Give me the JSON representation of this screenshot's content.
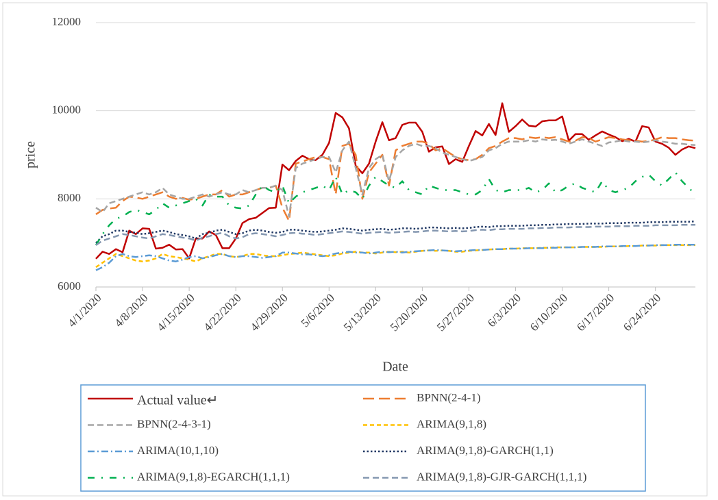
{
  "chart_data": {
    "type": "line",
    "x_label": "Date",
    "y_label": "price",
    "categories": [
      "4/1/2020",
      null,
      null,
      null,
      null,
      null,
      null,
      "4/8/2020",
      null,
      null,
      null,
      null,
      null,
      null,
      "4/15/2020",
      null,
      null,
      null,
      null,
      null,
      null,
      "4/22/2020",
      null,
      null,
      null,
      null,
      null,
      null,
      "4/29/2020",
      null,
      null,
      null,
      null,
      null,
      null,
      "5/6/2020",
      null,
      null,
      null,
      null,
      null,
      null,
      "5/13/2020",
      null,
      null,
      null,
      null,
      null,
      null,
      "5/20/2020",
      null,
      null,
      null,
      null,
      null,
      null,
      "5/27/2020",
      null,
      null,
      null,
      null,
      null,
      null,
      "6/3/2020",
      null,
      null,
      null,
      null,
      null,
      null,
      "6/10/2020",
      null,
      null,
      null,
      null,
      null,
      null,
      "6/17/2020",
      null,
      null,
      null,
      null,
      null,
      null,
      "6/24/2020",
      null,
      null,
      null,
      null,
      null,
      null
    ],
    "ylim": [
      6000,
      12000
    ],
    "yticks": [
      6000,
      8000,
      10000,
      12000
    ],
    "grid": true,
    "series": [
      {
        "name": "Actual value↵",
        "color": "#c00000",
        "line_style": "solid",
        "values": [
          6640,
          6800,
          6750,
          6860,
          6790,
          7280,
          7200,
          7330,
          7320,
          6870,
          6890,
          6960,
          6850,
          6860,
          6650,
          7100,
          7100,
          7260,
          7180,
          6880,
          6880,
          7100,
          7450,
          7540,
          7570,
          7680,
          7790,
          7800,
          8780,
          8650,
          8860,
          8980,
          8900,
          8880,
          9000,
          9270,
          9950,
          9850,
          9600,
          8750,
          8580,
          8800,
          9300,
          9740,
          9330,
          9380,
          9680,
          9730,
          9730,
          9520,
          9070,
          9170,
          9190,
          8790,
          8900,
          8840,
          9200,
          9540,
          9440,
          9700,
          9450,
          10170,
          9520,
          9650,
          9800,
          9660,
          9640,
          9760,
          9780,
          9780,
          9870,
          9320,
          9470,
          9470,
          9340,
          9440,
          9530,
          9460,
          9400,
          9310,
          9360,
          9300,
          9650,
          9620,
          9300,
          9250,
          9160,
          9000,
          9120,
          9190,
          9150
        ]
      },
      {
        "name": "BPNN(2-4-1)",
        "color": "#ed7d31",
        "line_style": "long-dash",
        "values": [
          7650,
          7750,
          7780,
          7800,
          7950,
          8050,
          8030,
          8000,
          8050,
          8100,
          8150,
          8050,
          8000,
          8020,
          7980,
          8000,
          8050,
          8100,
          8100,
          8200,
          8050,
          8100,
          8100,
          8150,
          8200,
          8250,
          8250,
          8300,
          7800,
          7500,
          8800,
          8850,
          8900,
          8950,
          8950,
          8900,
          8100,
          9200,
          9250,
          9000,
          8000,
          8600,
          8800,
          9000,
          8300,
          9100,
          9200,
          9250,
          9300,
          9300,
          9250,
          9100,
          9150,
          9050,
          8950,
          8900,
          8880,
          8900,
          9000,
          9150,
          9200,
          9300,
          9380,
          9380,
          9350,
          9400,
          9380,
          9400,
          9380,
          9400,
          9350,
          9300,
          9320,
          9400,
          9380,
          9300,
          9350,
          9400,
          9380,
          9350,
          9330,
          9320,
          9300,
          9310,
          9350,
          9400,
          9380,
          9380,
          9350,
          9330,
          9320
        ]
      },
      {
        "name": "BPNN(2-4-3-1)",
        "color": "#a5a5a5",
        "line_style": "dash",
        "values": [
          7800,
          7700,
          7900,
          7950,
          8000,
          8050,
          8100,
          8150,
          8100,
          8150,
          8250,
          8100,
          8050,
          8000,
          8000,
          8050,
          8100,
          8050,
          8100,
          8150,
          8100,
          8100,
          8200,
          8150,
          8200,
          8250,
          8250,
          8300,
          8200,
          7600,
          8700,
          8800,
          8850,
          8900,
          8950,
          8950,
          8600,
          9100,
          9300,
          8700,
          8100,
          8700,
          8900,
          9000,
          8400,
          8950,
          9100,
          9200,
          9250,
          9200,
          9200,
          9150,
          9050,
          9000,
          8950,
          8900,
          8860,
          8900,
          8950,
          9100,
          9150,
          9250,
          9300,
          9300,
          9300,
          9330,
          9300,
          9350,
          9330,
          9340,
          9300,
          9250,
          9300,
          9350,
          9300,
          9250,
          9200,
          9280,
          9300,
          9330,
          9300,
          9300,
          9280,
          9300,
          9330,
          9300,
          9280,
          9250,
          9250,
          9230,
          9220
        ]
      },
      {
        "name": "ARIMA(9,1,8)",
        "color": "#ffc000",
        "line_style": "short-dash",
        "values": [
          6450,
          6550,
          6650,
          6750,
          6700,
          6650,
          6600,
          6580,
          6600,
          6650,
          6750,
          6700,
          6680,
          6650,
          6620,
          6580,
          6650,
          6700,
          6750,
          6750,
          6700,
          6680,
          6700,
          6750,
          6750,
          6720,
          6700,
          6700,
          6720,
          6750,
          6760,
          6780,
          6760,
          6740,
          6720,
          6700,
          6720,
          6760,
          6780,
          6800,
          6780,
          6780,
          6760,
          6780,
          6800,
          6790,
          6800,
          6780,
          6800,
          6820,
          6830,
          6820,
          6830,
          6820,
          6800,
          6800,
          6820,
          6830,
          6840,
          6850,
          6860,
          6860,
          6870,
          6870,
          6880,
          6880,
          6880,
          6890,
          6890,
          6900,
          6900,
          6900,
          6900,
          6910,
          6910,
          6910,
          6910,
          6920,
          6920,
          6920,
          6930,
          6930,
          6940,
          6940,
          6940,
          6950,
          6950,
          6950,
          6950,
          6950,
          6950
        ]
      },
      {
        "name": "ARIMA(10,1,10)",
        "color": "#5b9bd5",
        "line_style": "dash-dot",
        "values": [
          6380,
          6450,
          6550,
          6700,
          6750,
          6700,
          6680,
          6700,
          6720,
          6700,
          6650,
          6600,
          6580,
          6620,
          6680,
          6700,
          6650,
          6680,
          6720,
          6750,
          6700,
          6680,
          6700,
          6700,
          6680,
          6660,
          6680,
          6700,
          6780,
          6780,
          6760,
          6740,
          6740,
          6720,
          6700,
          6720,
          6760,
          6780,
          6800,
          6780,
          6780,
          6760,
          6780,
          6800,
          6790,
          6800,
          6780,
          6800,
          6810,
          6820,
          6830,
          6840,
          6830,
          6820,
          6810,
          6820,
          6830,
          6840,
          6840,
          6850,
          6860,
          6860,
          6870,
          6870,
          6870,
          6880,
          6880,
          6880,
          6890,
          6890,
          6900,
          6900,
          6900,
          6910,
          6910,
          6910,
          6920,
          6920,
          6920,
          6930,
          6930,
          6930,
          6940,
          6940,
          6950,
          6950,
          6950,
          6960,
          6960,
          6960,
          6960
        ]
      },
      {
        "name": "ARIMA(9,1,8)-GARCH(1,1)",
        "color": "#203864",
        "line_style": "dot",
        "values": [
          7000,
          7150,
          7200,
          7280,
          7280,
          7250,
          7230,
          7200,
          7220,
          7250,
          7280,
          7250,
          7200,
          7180,
          7150,
          7100,
          7200,
          7230,
          7280,
          7300,
          7250,
          7200,
          7220,
          7280,
          7300,
          7280,
          7250,
          7230,
          7250,
          7300,
          7300,
          7280,
          7260,
          7250,
          7260,
          7280,
          7300,
          7330,
          7320,
          7300,
          7280,
          7300,
          7310,
          7320,
          7300,
          7310,
          7330,
          7330,
          7320,
          7330,
          7350,
          7350,
          7340,
          7330,
          7340,
          7330,
          7340,
          7360,
          7370,
          7360,
          7380,
          7380,
          7390,
          7390,
          7390,
          7400,
          7400,
          7410,
          7410,
          7420,
          7420,
          7430,
          7430,
          7430,
          7440,
          7440,
          7440,
          7450,
          7450,
          7450,
          7460,
          7460,
          7460,
          7470,
          7470,
          7470,
          7480,
          7480,
          7480,
          7480,
          7490
        ]
      },
      {
        "name": "ARIMA(9,1,8)-EGARCH(1,1,1)",
        "color": "#00b050",
        "line_style": "dash-sparse-dot",
        "values": [
          6950,
          7200,
          7400,
          7550,
          7600,
          7700,
          7750,
          7700,
          7650,
          7750,
          7900,
          7800,
          7850,
          7900,
          7950,
          8000,
          7850,
          8100,
          8050,
          8050,
          7850,
          7800,
          7780,
          7850,
          8100,
          8300,
          8200,
          8150,
          8300,
          7900,
          8050,
          8150,
          8200,
          8250,
          8300,
          8200,
          8500,
          8100,
          8200,
          8150,
          8000,
          8300,
          8500,
          8400,
          8300,
          8250,
          8400,
          8200,
          8150,
          8100,
          8300,
          8250,
          8200,
          8200,
          8200,
          8150,
          8100,
          8100,
          8200,
          8450,
          8200,
          8150,
          8200,
          8200,
          8200,
          8250,
          8150,
          8200,
          8350,
          8150,
          8200,
          8300,
          8350,
          8250,
          8200,
          8150,
          8400,
          8200,
          8150,
          8200,
          8250,
          8400,
          8500,
          8550,
          8400,
          8300,
          8450,
          8600,
          8400,
          8250,
          8100
        ]
      },
      {
        "name": "ARIMA(9,1,8)-GJR-GARCH(1,1,1)",
        "color": "#8497b0",
        "line_style": "dash",
        "values": [
          6950,
          7050,
          7100,
          7150,
          7200,
          7180,
          7150,
          7120,
          7100,
          7150,
          7200,
          7180,
          7150,
          7120,
          7100,
          7050,
          7120,
          7150,
          7200,
          7230,
          7150,
          7100,
          7130,
          7200,
          7220,
          7200,
          7180,
          7150,
          7180,
          7220,
          7230,
          7210,
          7200,
          7180,
          7200,
          7220,
          7240,
          7260,
          7250,
          7230,
          7210,
          7230,
          7240,
          7250,
          7230,
          7240,
          7250,
          7260,
          7250,
          7260,
          7280,
          7280,
          7270,
          7260,
          7270,
          7260,
          7270,
          7290,
          7300,
          7290,
          7310,
          7310,
          7320,
          7320,
          7320,
          7330,
          7330,
          7340,
          7340,
          7350,
          7350,
          7350,
          7360,
          7360,
          7360,
          7370,
          7370,
          7370,
          7380,
          7380,
          7380,
          7390,
          7390,
          7390,
          7400,
          7400,
          7400,
          7400,
          7410,
          7410,
          7410
        ]
      }
    ]
  }
}
